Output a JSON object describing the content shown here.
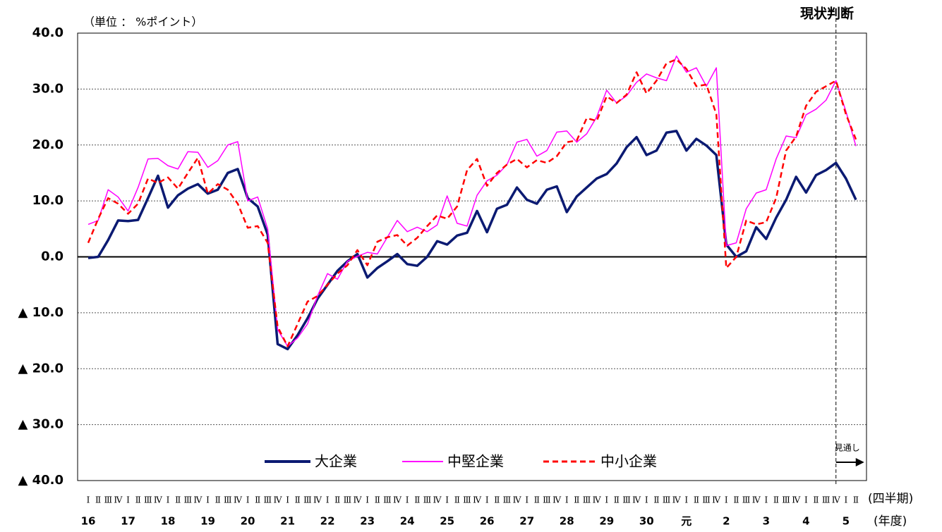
{
  "chart_data": {
    "type": "line",
    "y_label": "（単位 ： %ポイント）",
    "current_label": "現状判断",
    "forecast_label": "見通し",
    "x_label": "(四半期)",
    "year_label": "(年度)",
    "categories": [
      "Ⅰ",
      "Ⅱ",
      "Ⅲ",
      "Ⅳ",
      "Ⅰ",
      "Ⅱ",
      "Ⅲ",
      "Ⅳ",
      "Ⅰ",
      "Ⅱ",
      "Ⅲ",
      "Ⅳ",
      "Ⅰ",
      "Ⅱ",
      "Ⅲ",
      "Ⅳ",
      "Ⅰ",
      "Ⅱ",
      "Ⅲ",
      "Ⅳ",
      "Ⅰ",
      "Ⅱ",
      "Ⅲ",
      "Ⅳ",
      "Ⅰ",
      "Ⅱ",
      "Ⅲ",
      "Ⅳ",
      "Ⅰ",
      "Ⅱ",
      "Ⅲ",
      "Ⅳ",
      "Ⅰ",
      "Ⅱ",
      "Ⅲ",
      "Ⅳ",
      "Ⅰ",
      "Ⅱ",
      "Ⅲ",
      "Ⅳ",
      "Ⅰ",
      "Ⅱ",
      "Ⅲ",
      "Ⅳ",
      "Ⅰ",
      "Ⅱ",
      "Ⅲ",
      "Ⅳ",
      "Ⅰ",
      "Ⅱ",
      "Ⅲ",
      "Ⅳ",
      "Ⅰ",
      "Ⅱ",
      "Ⅲ",
      "Ⅳ",
      "Ⅰ",
      "Ⅱ",
      "Ⅲ",
      "Ⅳ",
      "Ⅰ",
      "Ⅱ",
      "Ⅲ",
      "Ⅳ",
      "Ⅰ",
      "Ⅱ",
      "Ⅲ",
      "Ⅳ",
      "Ⅰ",
      "Ⅱ",
      "Ⅲ",
      "Ⅳ",
      "Ⅰ",
      "Ⅱ",
      "Ⅲ",
      "Ⅳ",
      "Ⅰ",
      "Ⅱ"
    ],
    "years": [
      "16",
      "17",
      "18",
      "19",
      "20",
      "21",
      "22",
      "23",
      "24",
      "25",
      "26",
      "27",
      "28",
      "29",
      "30",
      "元",
      "2",
      "3",
      "4",
      "5"
    ],
    "series": [
      {
        "name": "大企業",
        "color": "#0b1a72",
        "dash": false,
        "width": 3.5,
        "values": [
          -0.2,
          0,
          3,
          6.5,
          6.4,
          6.6,
          10.5,
          14.5,
          8.8,
          11,
          12.2,
          13,
          11.3,
          12,
          15,
          15.7,
          10.5,
          9,
          4,
          -15.6,
          -16.5,
          -14,
          -11,
          -7.5,
          -5,
          -2.5,
          -0.8,
          0.5,
          -3.7,
          -2,
          -0.8,
          0.5,
          -1.3,
          -1.6,
          0,
          2.8,
          2.2,
          3.8,
          4.3,
          8.2,
          4.4,
          8.6,
          9.3,
          12.4,
          10.2,
          9.5,
          12,
          12.6,
          8,
          10.8,
          12.4,
          14,
          14.8,
          16.7,
          19.6,
          21.4,
          18.2,
          19,
          22.2,
          22.5,
          19,
          21.1,
          19.9,
          18.2,
          2.2,
          0,
          1,
          5.3,
          3.2,
          7,
          10.2,
          14.3,
          11.5,
          14.6,
          15.5,
          16.8,
          14,
          10.2
        ]
      },
      {
        "name": "中堅企業",
        "color": "#ff00ff",
        "dash": false,
        "width": 1.5,
        "values": [
          5.8,
          6.5,
          12,
          10.7,
          8.2,
          12.4,
          17.5,
          17.6,
          16.3,
          15.7,
          18.8,
          18.7,
          16,
          17.2,
          20,
          20.6,
          10,
          10.7,
          5,
          -13,
          -16,
          -14.5,
          -12,
          -7,
          -3,
          -4,
          -0.8,
          0.1,
          0.8,
          0.5,
          3.5,
          6.5,
          4.5,
          5.3,
          4.5,
          5.7,
          10.9,
          6,
          5.5,
          11,
          13.6,
          14.6,
          16.5,
          20.5,
          21,
          18,
          19,
          22.3,
          22.5,
          20.5,
          22,
          25,
          29.8,
          27.5,
          28.8,
          31.2,
          32.7,
          32,
          31.5,
          35.9,
          33,
          33.8,
          30.5,
          33.8,
          2,
          2.5,
          8.6,
          11.4,
          12,
          17.5,
          21.6,
          21.3,
          25.4,
          26.4,
          28,
          31.5,
          26,
          19.8
        ]
      },
      {
        "name": "中小企業",
        "color": "#ff0000",
        "dash": true,
        "width": 2.5,
        "values": [
          2.5,
          6.8,
          10.5,
          9.5,
          7.7,
          9.5,
          14,
          13.2,
          14.2,
          12.2,
          15,
          17.7,
          11.3,
          13,
          12,
          9.5,
          5.2,
          5.5,
          2.5,
          -12.5,
          -16,
          -12,
          -8,
          -7,
          -5,
          -3,
          -1.5,
          1.2,
          -1.5,
          2.7,
          3.5,
          3.9,
          2,
          3.4,
          5.5,
          7.4,
          6.8,
          9,
          15.5,
          17.5,
          12.7,
          15,
          16.5,
          17.5,
          16,
          17.3,
          16.8,
          18,
          20.5,
          20.8,
          24.8,
          24.3,
          28.7,
          27.5,
          29,
          33,
          29.2,
          31.5,
          34.6,
          35.3,
          33.6,
          30.5,
          30.8,
          25.5,
          -2,
          0,
          6.5,
          5.8,
          6.2,
          10.5,
          19,
          21.5,
          27,
          29.5,
          30.5,
          31.5,
          25.5,
          21
        ]
      }
    ],
    "ylim": [
      -40,
      40
    ],
    "yticks": [
      {
        "value": 40,
        "label": "40.0"
      },
      {
        "value": 30,
        "label": "30.0"
      },
      {
        "value": 20,
        "label": "20.0"
      },
      {
        "value": 10,
        "label": "10.0"
      },
      {
        "value": 0,
        "label": "0.0"
      },
      {
        "value": -10,
        "label": "▲ 10.0"
      },
      {
        "value": -20,
        "label": "▲ 20.0"
      },
      {
        "value": -30,
        "label": "▲ 30.0"
      },
      {
        "value": -40,
        "label": "▲ 40.0"
      }
    ],
    "grid": true
  }
}
